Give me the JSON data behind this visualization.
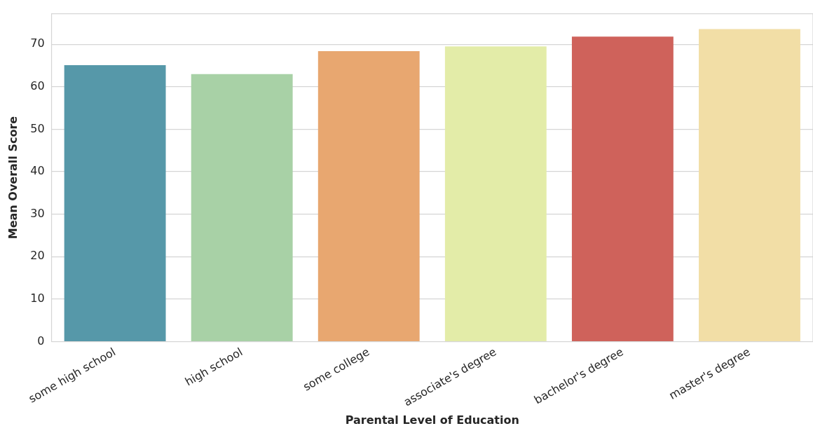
{
  "chart_data": {
    "type": "bar",
    "xlabel": "Parental Level of Education",
    "ylabel": "Mean Overall Score",
    "categories": [
      "some high school",
      "high school",
      "some college",
      "associate's degree",
      "bachelor's degree",
      "master's degree"
    ],
    "values": [
      65.1,
      63.0,
      68.4,
      69.5,
      71.8,
      73.6
    ],
    "colors": [
      "#5698a9",
      "#a8d1a6",
      "#e8a770",
      "#e3eca8",
      "#cf625b",
      "#f2dea6"
    ],
    "ylim": [
      0,
      77.2
    ],
    "yticks": [
      0,
      10,
      20,
      30,
      40,
      50,
      60,
      70
    ],
    "grid": "y"
  }
}
